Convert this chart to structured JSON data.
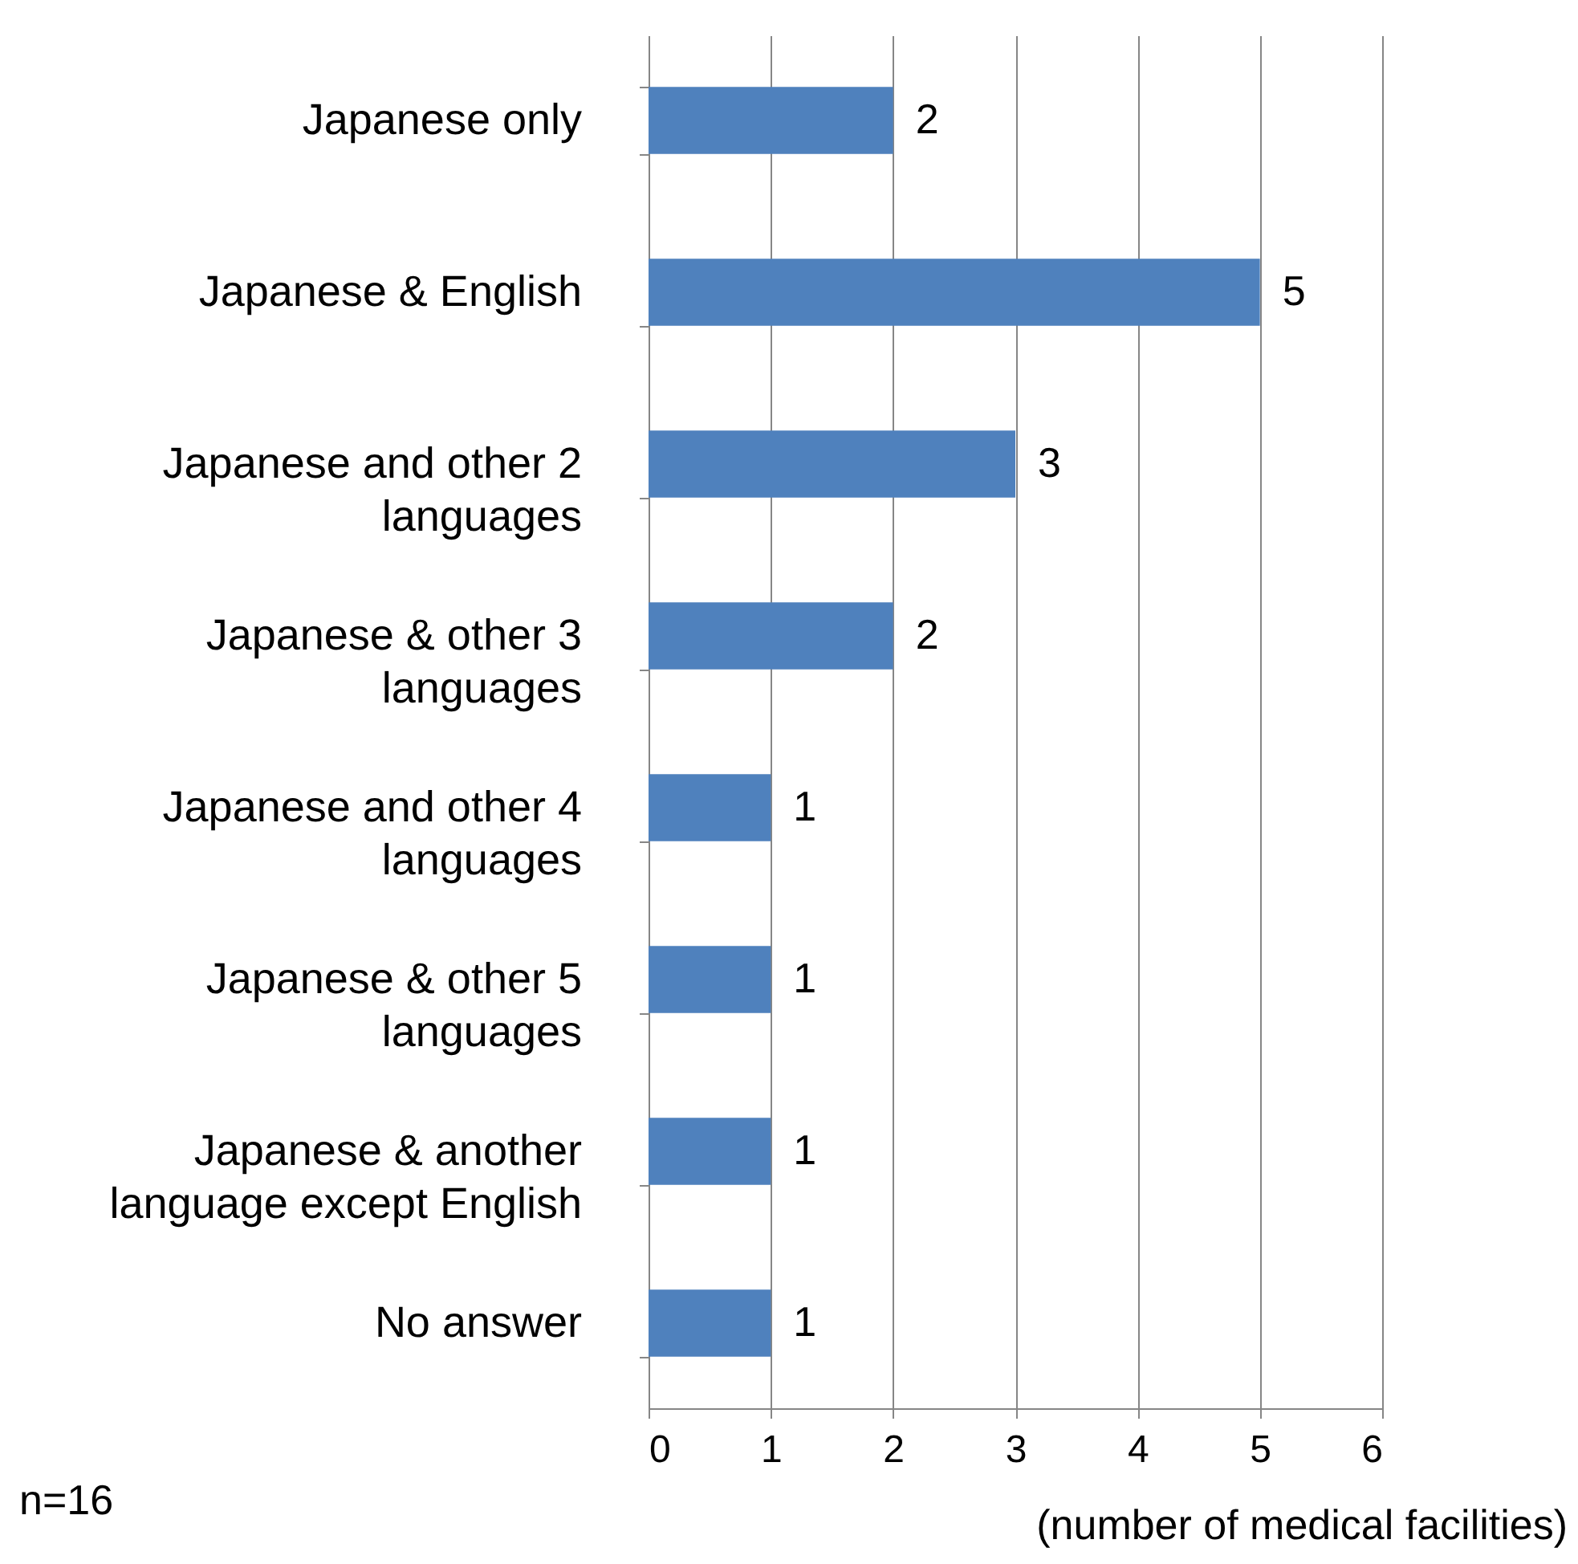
{
  "chart_data": {
    "type": "bar",
    "orientation": "horizontal",
    "categories": [
      "Japanese only",
      "Japanese & English",
      "Japanese and other 2 languages",
      "Japanese & other 3 languages",
      "Japanese and other 4 languages",
      "Japanese & other 5 languages",
      "Japanese & another language except English",
      "No answer"
    ],
    "values": [
      2,
      5,
      3,
      2,
      1,
      1,
      1,
      1
    ],
    "color": "#4f81bd",
    "xlim": [
      0,
      6
    ],
    "xticks": [
      0,
      1,
      2,
      3,
      4,
      5,
      6
    ],
    "xlabel": "(number of medical facilities)",
    "annotations": [
      "n=16"
    ],
    "grid": "x",
    "data_labels": true
  }
}
